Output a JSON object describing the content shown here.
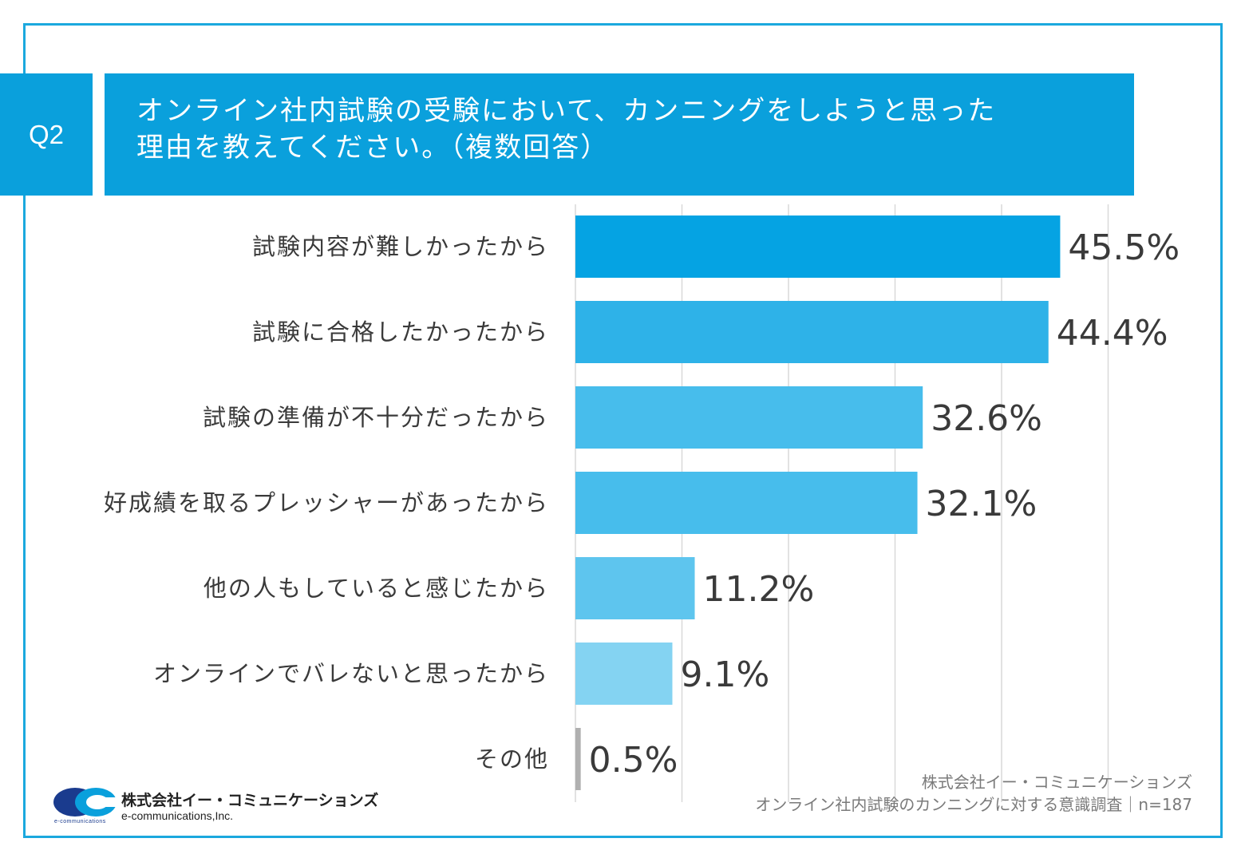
{
  "question": {
    "badge": "Q2",
    "line1": "オンライン社内試験の受験において、カンニングをしようと思った",
    "line2": "理由を教えてください。（複数回答）"
  },
  "source": {
    "line1": "株式会社イー・コミュニケーションズ",
    "line2": "オンライン社内試験のカンニングに対する意識調査｜n=187"
  },
  "logo": {
    "company_ja": "株式会社イー・コミュニケーションズ",
    "company_en": "e-communications,Inc.",
    "small": "e-communications"
  },
  "colors": {
    "accent": "#0aa0dc",
    "frame": "#1ba8de",
    "bars": [
      "#05a3e3",
      "#2eb2e8",
      "#47bdec",
      "#47bdec",
      "#5ec5ee",
      "#84d3f2",
      "#b0b0b0"
    ]
  },
  "chart_data": {
    "type": "bar",
    "orientation": "horizontal",
    "categories": [
      "試験内容が難しかったから",
      "試験に合格したかったから",
      "試験の準備が不十分だったから",
      "好成績を取るプレッシャーがあったから",
      "他の人もしていると感じたから",
      "オンラインでバレないと思ったから",
      "その他"
    ],
    "values": [
      45.5,
      44.4,
      32.6,
      32.1,
      11.2,
      9.1,
      0.5
    ],
    "labels": [
      "45.5%",
      "44.4%",
      "32.6%",
      "32.1%",
      "11.2%",
      "9.1%",
      "0.5%"
    ],
    "xlim": [
      0,
      50
    ],
    "grid": true,
    "unit": "%"
  }
}
